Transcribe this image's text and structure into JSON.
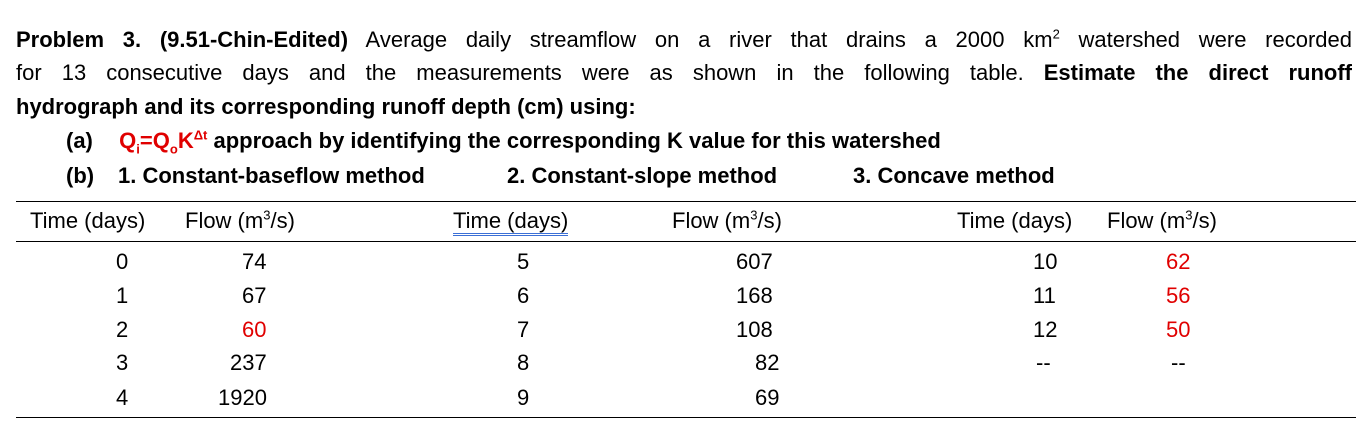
{
  "problem": {
    "heading": "Problem 3. (9.51-Chin-Edited)",
    "line1_rest_a": " Average daily streamflow on a river that drains a 2000 km",
    "line1_sup": "2",
    "line1_rest_b": " watershed were recorded",
    "line2_text": "for 13 consecutive days and the measurements were as shown in the following table. ",
    "line2_bold": "Estimate the direct runoff",
    "line3_bold": "hydrograph and its corresponding runoff depth (cm) using:",
    "part_a_label": "(a)",
    "part_a_q": "Q",
    "part_a_i": "i",
    "part_a_eq": "=Q",
    "part_a_o": "o",
    "part_a_k": "K",
    "part_a_dt": "Δt",
    "part_a_text": " approach by identifying the corresponding K value for this watershed",
    "part_b_label": "(b)",
    "part_b_m1": "1. Constant-baseflow method",
    "part_b_m2": "2. Constant-slope method",
    "part_b_m3": "3. Concave method"
  },
  "table": {
    "headers": {
      "time1": "Time (days)",
      "flow1": "Flow (m",
      "time2": "Time (days)",
      "flow2": "Flow (m",
      "time3": "Time (days)",
      "flow3": "Flow (m",
      "sup": "3",
      "suffix": "/s)"
    },
    "col1": [
      {
        "time": "0",
        "flow": "74"
      },
      {
        "time": "1",
        "flow": "67"
      },
      {
        "time": "2",
        "flow": "60"
      },
      {
        "time": "3",
        "flow": "237"
      },
      {
        "time": "4",
        "flow": "1920"
      }
    ],
    "col2": [
      {
        "time": "5",
        "flow": "607"
      },
      {
        "time": "6",
        "flow": "168"
      },
      {
        "time": "7",
        "flow": "108"
      },
      {
        "time": "8",
        "flow": "82"
      },
      {
        "time": "9",
        "flow": "69"
      }
    ],
    "col3": [
      {
        "time": "10",
        "flow": "62"
      },
      {
        "time": "11",
        "flow": "56"
      },
      {
        "time": "12",
        "flow": "50"
      },
      {
        "time": "--",
        "flow": "--"
      }
    ]
  },
  "colors": {
    "highlight": "#e00000",
    "underline": "#3b6fd6"
  }
}
